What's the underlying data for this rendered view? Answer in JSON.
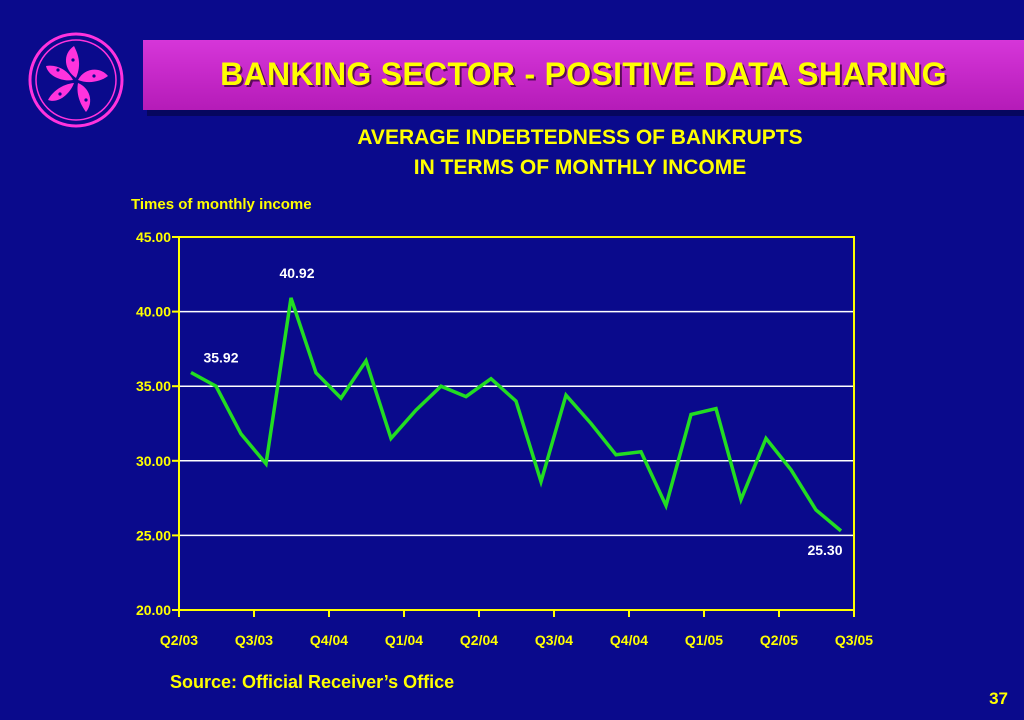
{
  "header": {
    "title": "BANKING SECTOR - POSITIVE DATA SHARING",
    "logo_icon": "bauhinia-flower-icon"
  },
  "footer": {
    "source": "Source: Official Receiver’s Office",
    "page_number": "37"
  },
  "colors": {
    "background": "#0a0a8c",
    "title_bar": "#c828cb",
    "text": "#ffff00",
    "line": "#22dd22",
    "gridline": "#ffffff"
  },
  "chart_data": {
    "type": "line",
    "title": "AVERAGE INDEBTEDNESS OF BANKRUPTS",
    "subtitle": "IN TERMS OF MONTHLY INCOME",
    "ylabel": "Times of monthly income",
    "xlabel": "",
    "ylim": [
      20,
      45
    ],
    "y_ticks": [
      "20.00",
      "25.00",
      "30.00",
      "35.00",
      "40.00",
      "45.00"
    ],
    "x_tick_labels": [
      "Q2/03",
      "Q3/03",
      "Q4/04",
      "Q1/04",
      "Q2/04",
      "Q3/04",
      "Q4/04",
      "Q1/05",
      "Q2/05",
      "Q3/05"
    ],
    "grid": true,
    "series": [
      {
        "name": "",
        "values": [
          35.92,
          35.0,
          31.8,
          29.8,
          40.92,
          35.9,
          34.2,
          36.7,
          31.5,
          33.4,
          35.0,
          34.3,
          35.5,
          34.0,
          28.6,
          34.4,
          32.5,
          30.4,
          30.6,
          27.0,
          33.1,
          33.5,
          27.4,
          31.5,
          29.4,
          26.7,
          25.3
        ]
      }
    ],
    "data_labels": [
      {
        "index": 0,
        "text": "35.92"
      },
      {
        "index": 4,
        "text": "40.92"
      },
      {
        "index": 26,
        "text": "25.30"
      }
    ]
  }
}
